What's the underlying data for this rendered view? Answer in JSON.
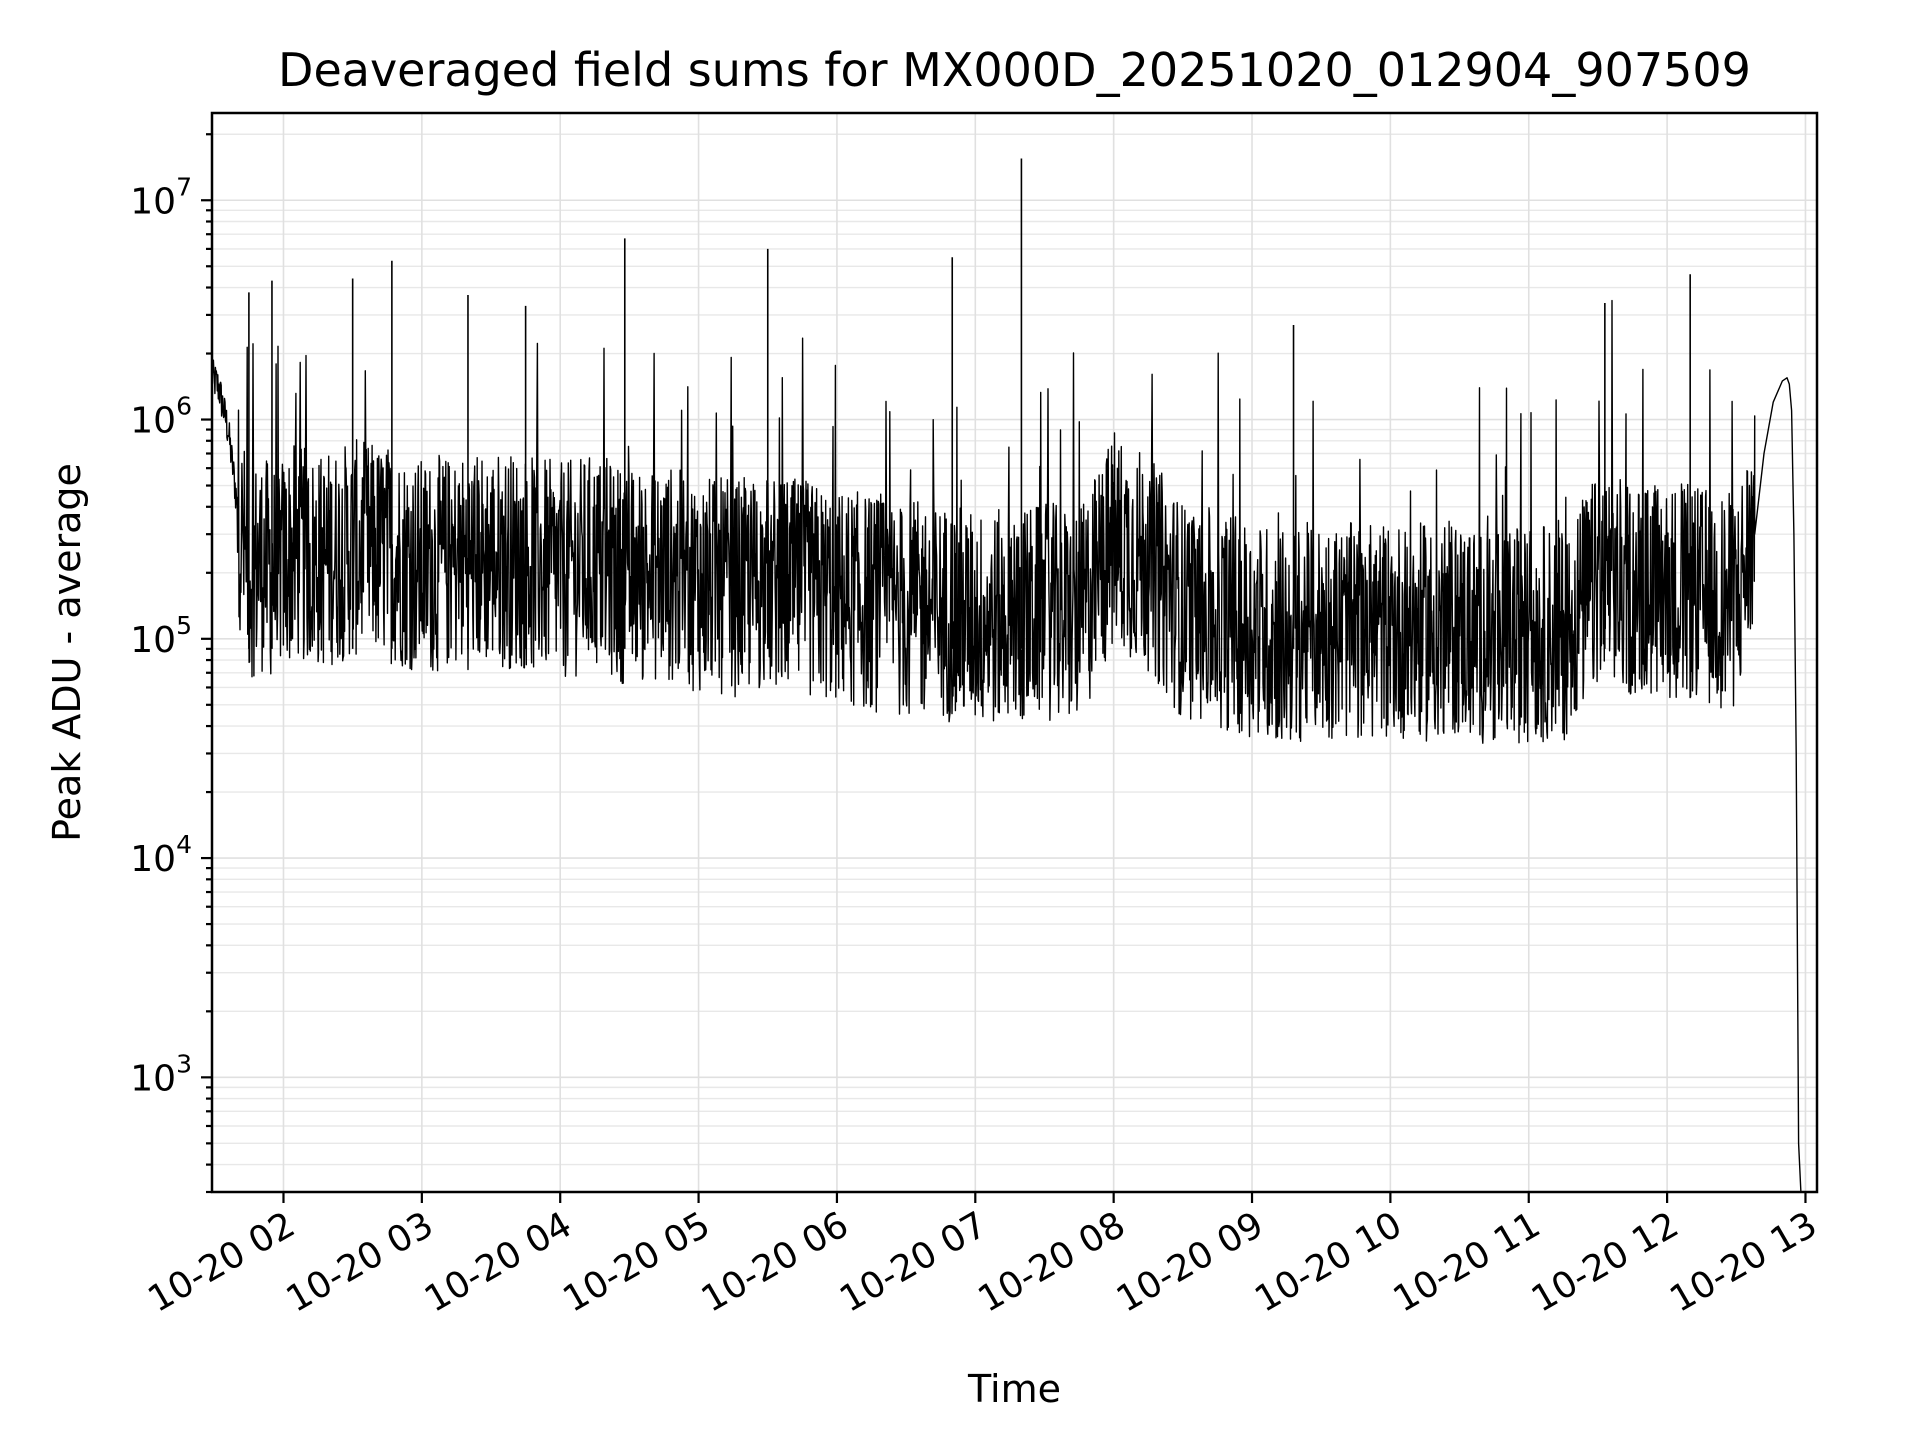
{
  "chart_data": {
    "type": "line",
    "title": "Deaveraged field sums for MX000D_20251020_012904_907509",
    "xlabel": "Time",
    "ylabel": "Peak ADU - average",
    "yscale": "log",
    "ylim": [
      300,
      25000000
    ],
    "xlim": [
      "2025-10-20 01:29",
      "2025-10-20 13:05"
    ],
    "grid": true,
    "x_ticks": [
      {
        "value": "2025-10-20 02:00",
        "label": "10-20 02"
      },
      {
        "value": "2025-10-20 03:00",
        "label": "10-20 03"
      },
      {
        "value": "2025-10-20 04:00",
        "label": "10-20 04"
      },
      {
        "value": "2025-10-20 05:00",
        "label": "10-20 05"
      },
      {
        "value": "2025-10-20 06:00",
        "label": "10-20 06"
      },
      {
        "value": "2025-10-20 07:00",
        "label": "10-20 07"
      },
      {
        "value": "2025-10-20 08:00",
        "label": "10-20 08"
      },
      {
        "value": "2025-10-20 09:00",
        "label": "10-20 09"
      },
      {
        "value": "2025-10-20 10:00",
        "label": "10-20 10"
      },
      {
        "value": "2025-10-20 11:00",
        "label": "10-20 11"
      },
      {
        "value": "2025-10-20 12:00",
        "label": "10-20 12"
      },
      {
        "value": "2025-10-20 13:00",
        "label": "10-20 13"
      }
    ],
    "y_ticks": [
      {
        "value": 1000,
        "base": "10",
        "exp": "3"
      },
      {
        "value": 10000,
        "base": "10",
        "exp": "4"
      },
      {
        "value": 100000,
        "base": "10",
        "exp": "5"
      },
      {
        "value": 1000000,
        "base": "10",
        "exp": "6"
      },
      {
        "value": 10000000,
        "base": "10",
        "exp": "7"
      }
    ],
    "series": [
      {
        "color": "#000000",
        "x": [
          "2025-10-20 01:29",
          "2025-10-20 01:32",
          "2025-10-20 01:36",
          "2025-10-20 01:39",
          "2025-10-20 01:42",
          "2025-10-20 01:45",
          "2025-10-20 01:50",
          "2025-10-20 01:55",
          "2025-10-20 02:05",
          "2025-10-20 02:15",
          "2025-10-20 02:30",
          "2025-10-20 02:45",
          "2025-10-20 03:00",
          "2025-10-20 03:15",
          "2025-10-20 03:30",
          "2025-10-20 03:45",
          "2025-10-20 04:00",
          "2025-10-20 04:15",
          "2025-10-20 04:30",
          "2025-10-20 04:45",
          "2025-10-20 05:00",
          "2025-10-20 05:15",
          "2025-10-20 05:30",
          "2025-10-20 05:45",
          "2025-10-20 06:00",
          "2025-10-20 06:15",
          "2025-10-20 06:30",
          "2025-10-20 06:45",
          "2025-10-20 07:00",
          "2025-10-20 07:15",
          "2025-10-20 07:30",
          "2025-10-20 07:45",
          "2025-10-20 08:00",
          "2025-10-20 08:15",
          "2025-10-20 08:30",
          "2025-10-20 08:45",
          "2025-10-20 09:00",
          "2025-10-20 09:15",
          "2025-10-20 09:30",
          "2025-10-20 09:45",
          "2025-10-20 10:00",
          "2025-10-20 10:15",
          "2025-10-20 10:30",
          "2025-10-20 10:45",
          "2025-10-20 11:00",
          "2025-10-20 11:15",
          "2025-10-20 11:30",
          "2025-10-20 11:45",
          "2025-10-20 12:00",
          "2025-10-20 12:15",
          "2025-10-20 12:30",
          "2025-10-20 12:38",
          "2025-10-20 12:42",
          "2025-10-20 12:46",
          "2025-10-20 12:50",
          "2025-10-20 12:52",
          "2025-10-20 12:53",
          "2025-10-20 12:54",
          "2025-10-20 12:55",
          "2025-10-20 12:56",
          "2025-10-20 12:57",
          "2025-10-20 12:58"
        ],
        "values": [
          1600000,
          1400000,
          900000,
          500000,
          250000,
          180000,
          200000,
          180000,
          220000,
          200000,
          230000,
          220000,
          190000,
          200000,
          210000,
          200000,
          180000,
          200000,
          170000,
          180000,
          160000,
          150000,
          160000,
          150000,
          140000,
          130000,
          120000,
          120000,
          110000,
          110000,
          120000,
          110000,
          250000,
          200000,
          120000,
          110000,
          100000,
          90000,
          100000,
          95000,
          100000,
          95000,
          100000,
          90000,
          95000,
          95000,
          160000,
          150000,
          150000,
          140000,
          130000,
          300000,
          700000,
          1200000,
          1500000,
          1550000,
          1450000,
          1100000,
          300000,
          30000,
          500,
          300
        ]
      }
    ],
    "spikes": {
      "x": [
        "2025-10-20 01:45",
        "2025-10-20 01:55",
        "2025-10-20 02:30",
        "2025-10-20 02:47",
        "2025-10-20 03:20",
        "2025-10-20 03:45",
        "2025-10-20 04:28",
        "2025-10-20 05:30",
        "2025-10-20 06:50",
        "2025-10-20 07:20",
        "2025-10-20 09:18",
        "2025-10-20 11:33",
        "2025-10-20 12:10"
      ],
      "values": [
        3800000,
        4300000,
        4400000,
        5300000,
        3700000,
        3300000,
        6700000,
        6000000,
        5500000,
        15500000,
        2700000,
        3400000,
        4600000
      ]
    }
  }
}
